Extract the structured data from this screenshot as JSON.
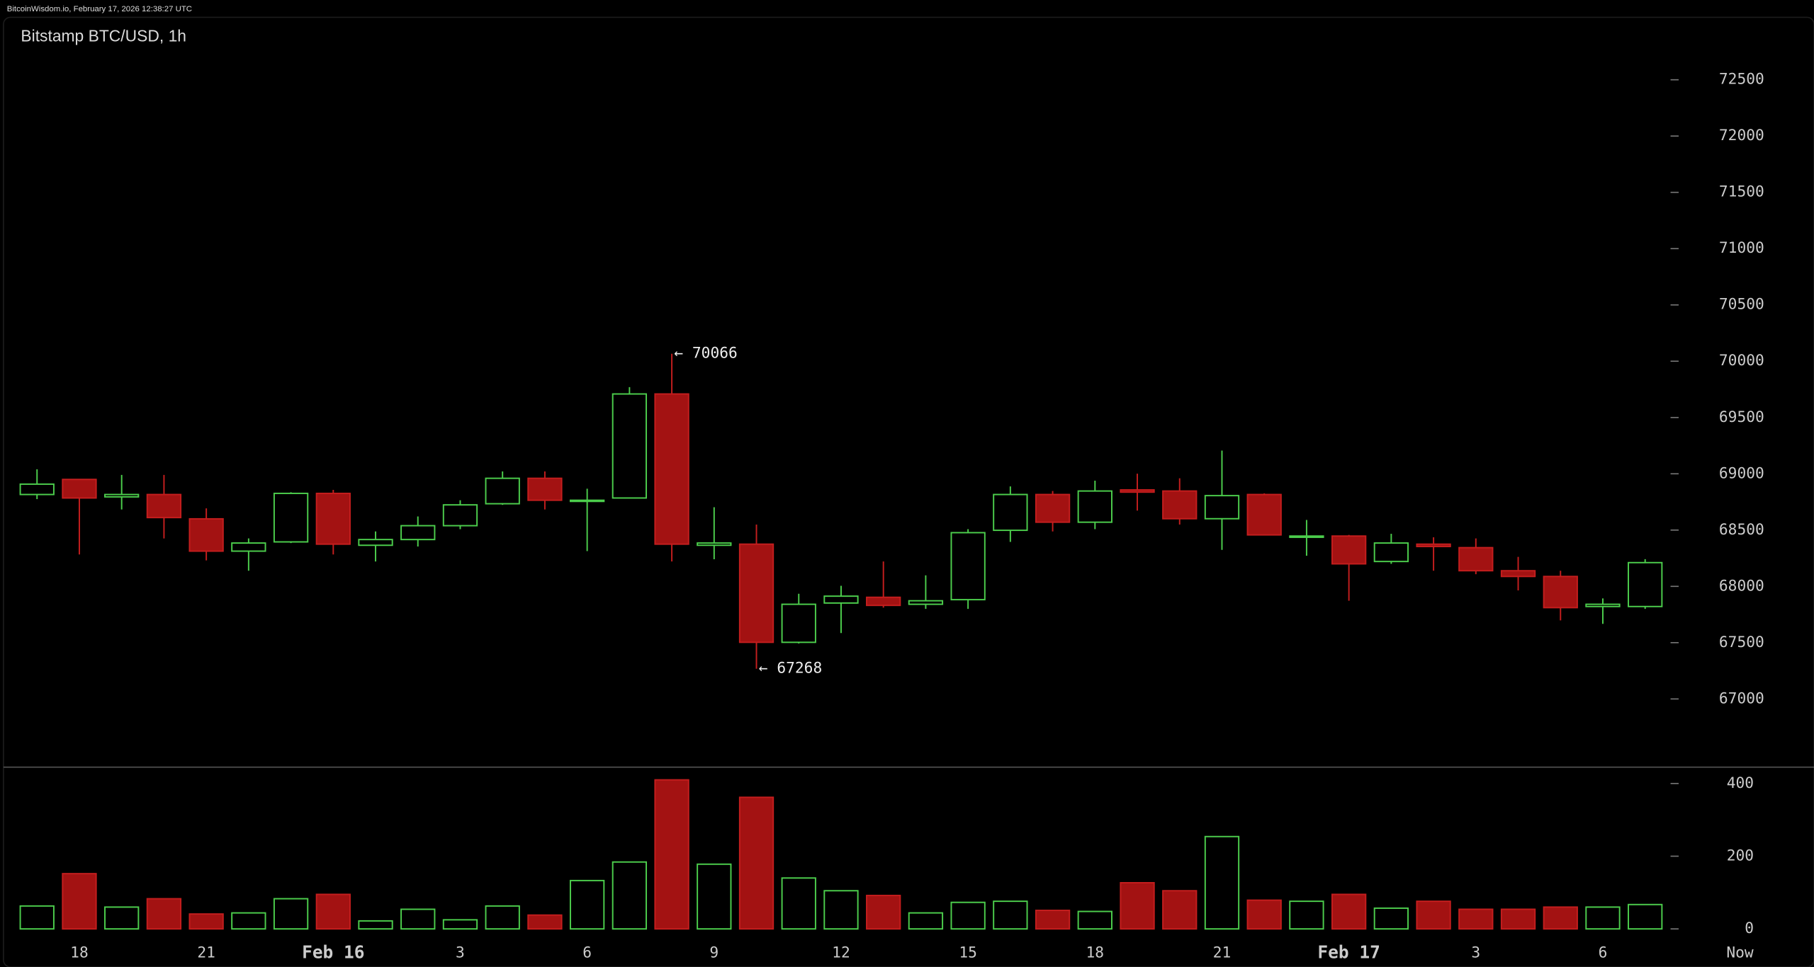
{
  "header": "BitcoinWisdom.io, February 17, 2026 12:38:27 UTC",
  "chart_data": {
    "type": "candlestick",
    "title": "Bitstamp BTC/USD, 1h",
    "categories": [
      null,
      "18",
      null,
      null,
      "21",
      null,
      null,
      "Feb 16",
      null,
      null,
      "3",
      null,
      null,
      "6",
      null,
      null,
      "9",
      null,
      null,
      "12",
      null,
      null,
      "15",
      null,
      null,
      "18",
      null,
      null,
      "21",
      null,
      null,
      "Feb 17",
      null,
      null,
      "3",
      null,
      null,
      "6",
      null
    ],
    "now_label": "Now",
    "open": [
      68816,
      68950,
      68795,
      68816,
      68600,
      68313,
      68395,
      68826,
      68365,
      68416,
      68539,
      68734,
      68960,
      68755,
      68785,
      69709,
      68365,
      68375,
      67503,
      67852,
      67903,
      67841,
      67882,
      68498,
      68816,
      68570,
      68857,
      68847,
      68601,
      68816,
      68436,
      68447,
      68221,
      68375,
      68344,
      68139,
      68088,
      67821,
      67821
    ],
    "high": [
      69040,
      68950,
      68990,
      68990,
      68693,
      68426,
      68836,
      68857,
      68488,
      68621,
      68765,
      69021,
      69021,
      68867,
      69770,
      70066,
      68703,
      68549,
      67934,
      68005,
      68221,
      68098,
      68508,
      68888,
      68847,
      68939,
      69001,
      68960,
      69206,
      68826,
      68590,
      68457,
      68467,
      68436,
      68426,
      68262,
      68139,
      67893,
      68242
    ],
    "low": [
      68775,
      68283,
      68683,
      68426,
      68231,
      68139,
      68385,
      68283,
      68221,
      68354,
      68508,
      68724,
      68683,
      68313,
      68785,
      68221,
      68241,
      67268,
      67493,
      67585,
      67811,
      67800,
      67800,
      68395,
      68488,
      68508,
      68673,
      68549,
      68324,
      68457,
      68272,
      67872,
      68200,
      68139,
      68108,
      67964,
      67698,
      67667,
      67800
    ],
    "close": [
      68908,
      68785,
      68816,
      68611,
      68313,
      68385,
      68826,
      68375,
      68416,
      68539,
      68724,
      68960,
      68765,
      68765,
      69709,
      68375,
      68385,
      67503,
      67841,
      67913,
      67831,
      67872,
      68477,
      68816,
      68570,
      68847,
      68837,
      68601,
      68806,
      68457,
      68447,
      68200,
      68385,
      68354,
      68139,
      68088,
      67811,
      67841,
      68211
    ],
    "up_color": "#4ccd4c",
    "down_color": "#a31212",
    "ylim": [
      66538,
      72798
    ],
    "yticks": [
      67000,
      67500,
      68000,
      68500,
      69000,
      69500,
      70000,
      70500,
      71000,
      71500,
      72000,
      72500
    ],
    "annotations": [
      {
        "label": "← 70066",
        "value": 70066,
        "anchor": "high"
      },
      {
        "label": "← 67268",
        "value": 67268,
        "anchor": "low"
      }
    ],
    "volume": {
      "values": [
        63,
        152,
        60,
        83,
        41,
        44,
        83,
        95,
        22,
        54,
        25,
        63,
        38,
        133,
        184,
        410,
        178,
        362,
        140,
        105,
        92,
        44,
        73,
        76,
        51,
        48,
        127,
        105,
        254,
        79,
        76,
        95,
        57,
        76,
        54,
        54,
        60,
        60,
        67
      ],
      "ylim": [
        -19,
        445
      ],
      "yticks": [
        0,
        200,
        400
      ]
    }
  }
}
